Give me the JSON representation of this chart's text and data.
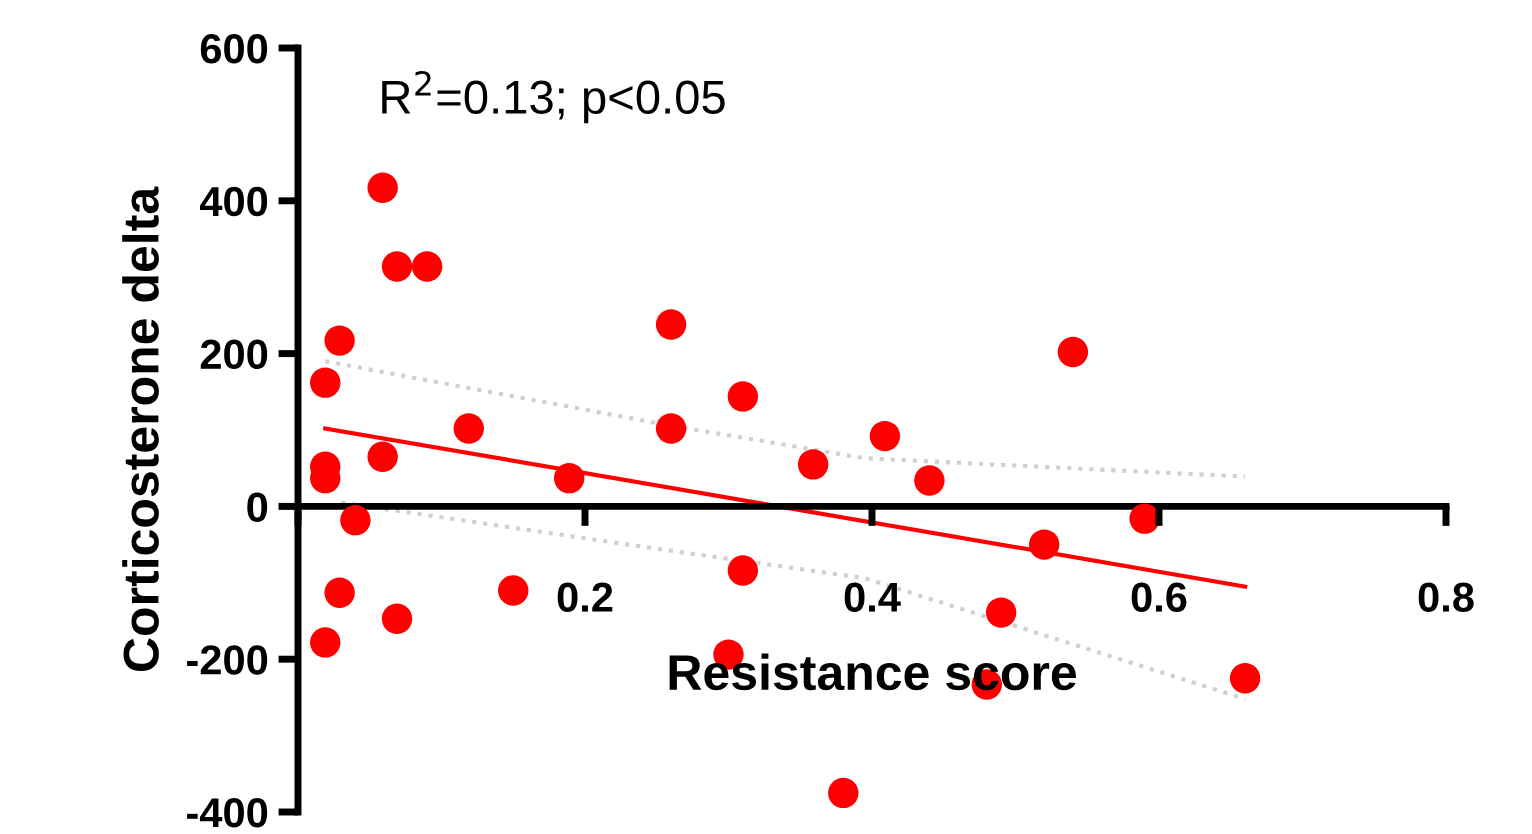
{
  "chart_data": {
    "type": "scatter",
    "xlabel": "Resistance score",
    "ylabel": "Corticosterone delta",
    "annotations": [
      "R$^{2}$=0.13; p<0.05"
    ],
    "xlim": [
      0,
      0.8
    ],
    "xticks": [
      {
        "value": 0,
        "label": null
      },
      0.2,
      0.4,
      0.6,
      0.8
    ],
    "ylim": [
      -400,
      600
    ],
    "yticks": [
      -400,
      -200,
      0,
      200,
      400,
      600
    ],
    "grid": false,
    "legend": false,
    "series": [
      {
        "color": "#ff0000",
        "marker": "circle",
        "x": [
          0.019,
          0.029,
          0.019,
          0.019,
          0.04,
          0.029,
          0.019,
          0.059,
          0.069,
          0.09,
          0.059,
          0.069,
          0.119,
          0.15,
          0.189,
          0.26,
          0.26,
          0.31,
          0.31,
          0.3,
          0.38,
          0.359,
          0.409,
          0.44,
          0.54,
          0.52,
          0.59,
          0.49,
          0.48,
          0.66
        ],
        "values": [
          162,
          217,
          52,
          37,
          -18,
          -113,
          -178,
          417,
          314,
          314,
          65,
          -147,
          102,
          -110,
          37,
          238,
          102,
          144,
          -84,
          -194,
          -375,
          55,
          92,
          34,
          202,
          -50,
          -16,
          -139,
          -233,
          -225
        ]
      },
      {
        "type": "line",
        "color": "#ff0000",
        "marker": "none",
        "line_style": "solid",
        "x": [
          0.019,
          0.66
        ],
        "values": [
          102,
          -105
        ]
      },
      {
        "type": "line",
        "color": "#d0d0d0",
        "marker": "none",
        "line_style": "dotted",
        "x": [
          0.019,
          0.256,
          0.395,
          0.66
        ],
        "values": [
          190,
          107,
          63,
          39
        ]
      },
      {
        "type": "line",
        "color": "#d0d0d0",
        "marker": "none",
        "line_style": "dotted",
        "x": [
          0.03,
          0.256,
          0.395,
          0.66
        ],
        "values": [
          5,
          -57,
          -94,
          -252
        ]
      }
    ]
  }
}
